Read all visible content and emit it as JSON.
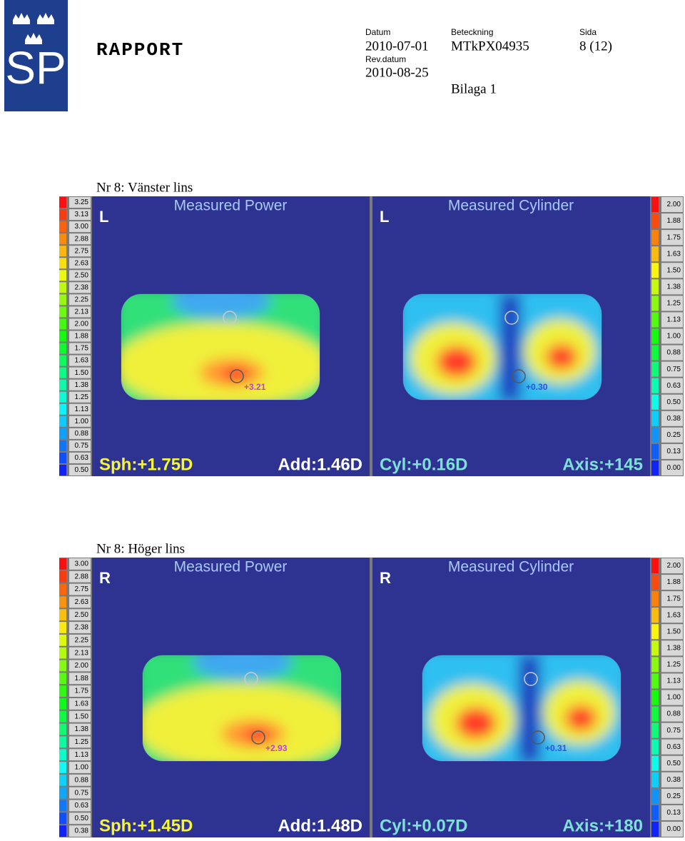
{
  "header": {
    "logo": "SP",
    "report": "RAPPORT",
    "datum_label": "Datum",
    "datum": "2010-07-01",
    "beteckning_label": "Beteckning",
    "beteckning": "MTkPX04935",
    "sida_label": "Sida",
    "sida": "8 (12)",
    "rev_label": "Rev.datum",
    "rev": "2010-08-25",
    "bilaga": "Bilaga 1"
  },
  "sections": [
    {
      "title": "Nr 8: Vänster lins",
      "power_scale": [
        "3.25",
        "3.13",
        "3.00",
        "2.88",
        "2.75",
        "2.63",
        "2.50",
        "2.38",
        "2.25",
        "2.13",
        "2.00",
        "1.88",
        "1.75",
        "1.63",
        "1.50",
        "1.38",
        "1.25",
        "1.13",
        "1.00",
        "0.88",
        "0.75",
        "0.63",
        "0.50"
      ],
      "cylinder_scale": [
        "2.00",
        "1.88",
        "1.75",
        "1.63",
        "1.50",
        "1.38",
        "1.25",
        "1.13",
        "1.00",
        "0.88",
        "0.75",
        "0.63",
        "0.50",
        "0.38",
        "0.25",
        "0.13",
        "0.00"
      ],
      "power": {
        "eye": "L",
        "title": "Measured Power",
        "marker": "+3.21",
        "left": "Sph:+1.75D",
        "right": "Add:1.46D"
      },
      "cylinder": {
        "eye": "L",
        "title": "Measured Cylinder",
        "marker": "+0.30",
        "left": "Cyl:+0.16D",
        "right": "Axis:+145"
      }
    },
    {
      "title": "Nr 8: Höger lins",
      "power_scale": [
        "3.00",
        "2.88",
        "2.75",
        "2.63",
        "2.50",
        "2.38",
        "2.25",
        "2.13",
        "2.00",
        "1.88",
        "1.75",
        "1.63",
        "1.50",
        "1.38",
        "1.25",
        "1.13",
        "1.00",
        "0.88",
        "0.75",
        "0.63",
        "0.50",
        "0.38"
      ],
      "cylinder_scale": [
        "2.00",
        "1.88",
        "1.75",
        "1.63",
        "1.50",
        "1.38",
        "1.25",
        "1.13",
        "1.00",
        "0.88",
        "0.75",
        "0.63",
        "0.50",
        "0.38",
        "0.25",
        "0.13",
        "0.00"
      ],
      "power": {
        "eye": "R",
        "title": "Measured Power",
        "marker": "+2.93",
        "left": "Sph:+1.45D",
        "right": "Add:1.48D"
      },
      "cylinder": {
        "eye": "R",
        "title": "Measured Cylinder",
        "marker": "+0.31",
        "left": "Cyl:+0.07D",
        "right": "Axis:+180"
      }
    }
  ]
}
